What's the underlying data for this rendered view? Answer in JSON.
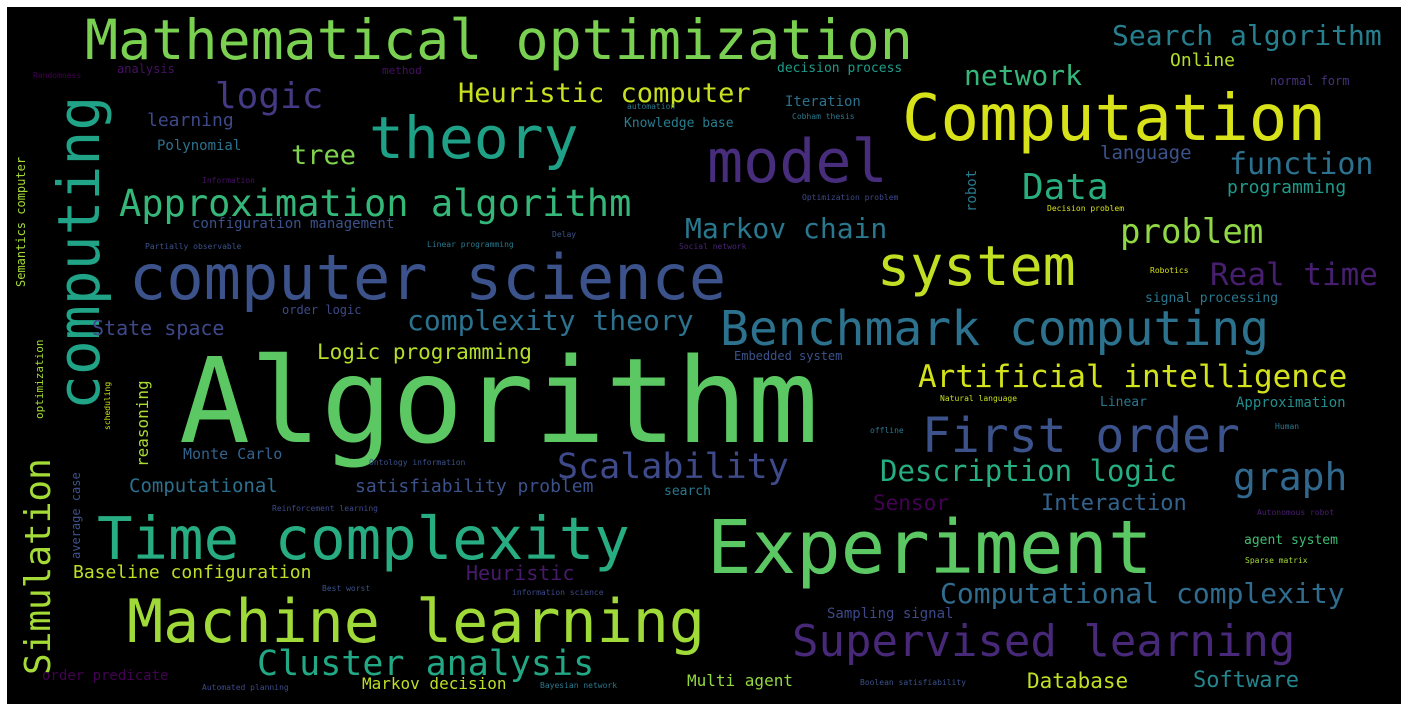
{
  "words": [
    {
      "text": "Algorithm",
      "color": "#5cc863"
    },
    {
      "text": "Experiment",
      "color": "#5cc863"
    },
    {
      "text": "computer science",
      "color": "#3b528b"
    },
    {
      "text": "Computation",
      "color": "#d8e219"
    },
    {
      "text": "Mathematical optimization",
      "color": "#7ad151"
    },
    {
      "text": "Time complexity",
      "color": "#27ad81"
    },
    {
      "text": "Machine learning",
      "color": "#a0da39"
    },
    {
      "text": "computing",
      "color": "#20a386"
    },
    {
      "text": "Benchmark computing",
      "color": "#2c728e"
    },
    {
      "text": "system",
      "color": "#c2df23"
    },
    {
      "text": "model",
      "color": "#472d7b"
    },
    {
      "text": "theory",
      "color": "#1fa187"
    },
    {
      "text": "First order",
      "color": "#3b528b"
    },
    {
      "text": "Supervised learning",
      "color": "#482878"
    },
    {
      "text": "Approximation algorithm",
      "color": "#35b779"
    },
    {
      "text": "Simulation",
      "color": "#a5db36"
    },
    {
      "text": "Cluster analysis",
      "color": "#22a884"
    },
    {
      "text": "Scalability",
      "color": "#3e4a89"
    },
    {
      "text": "logic",
      "color": "#443a83"
    },
    {
      "text": "graph",
      "color": "#31688e"
    },
    {
      "text": "Artificial intelligence",
      "color": "#d2e21b"
    },
    {
      "text": "Description logic",
      "color": "#26ad81"
    },
    {
      "text": "Computational complexity",
      "color": "#2f6c8e"
    },
    {
      "text": "problem",
      "color": "#8fd744"
    },
    {
      "text": "Heuristic computer",
      "color": "#c8e020"
    },
    {
      "text": "Data",
      "color": "#29af7f"
    },
    {
      "text": "Markov chain",
      "color": "#2a788e"
    },
    {
      "text": "complexity theory",
      "color": "#2c718e"
    },
    {
      "text": "Real time",
      "color": "#481f70"
    },
    {
      "text": "function",
      "color": "#2c718e"
    },
    {
      "text": "Search algorithm",
      "color": "#277f8e"
    },
    {
      "text": "network",
      "color": "#35b779"
    },
    {
      "text": "tree",
      "color": "#7fd34e"
    },
    {
      "text": "Logic programming",
      "color": "#b5de2b"
    },
    {
      "text": "Interaction",
      "color": "#33638d"
    },
    {
      "text": "Sensor",
      "color": "#440154"
    },
    {
      "text": "satisfiability problem",
      "color": "#3b528b"
    },
    {
      "text": "Computational",
      "color": "#2d708e"
    },
    {
      "text": "State space",
      "color": "#3f4889"
    },
    {
      "text": "Monte Carlo",
      "color": "#33638d"
    },
    {
      "text": "Baseline configuration",
      "color": "#bddf26"
    },
    {
      "text": "Heuristic",
      "color": "#481a6c"
    },
    {
      "text": "Database",
      "color": "#c0df25"
    },
    {
      "text": "Software",
      "color": "#25858e"
    },
    {
      "text": "Markov decision",
      "color": "#bddf26"
    },
    {
      "text": "Multi agent",
      "color": "#93d741"
    },
    {
      "text": "language",
      "color": "#3b528b"
    },
    {
      "text": "programming",
      "color": "#1f9a8a"
    },
    {
      "text": "Online",
      "color": "#b5de2b"
    },
    {
      "text": "learning",
      "color": "#3e4989"
    },
    {
      "text": "Polynomial",
      "color": "#2c728e"
    },
    {
      "text": "configuration management",
      "color": "#3b528b"
    },
    {
      "text": "Iteration",
      "color": "#2c718e"
    },
    {
      "text": "Knowledge base",
      "color": "#287d8e"
    },
    {
      "text": "decision process",
      "color": "#1e9c89"
    },
    {
      "text": "signal processing",
      "color": "#2a788e"
    },
    {
      "text": "Embedded system",
      "color": "#3b528b"
    },
    {
      "text": "Linear",
      "color": "#2a768e"
    },
    {
      "text": "Approximation",
      "color": "#228d8d"
    },
    {
      "text": "agent system",
      "color": "#3fbc73"
    },
    {
      "text": "Sampling signal",
      "color": "#3e4989"
    },
    {
      "text": "order predicate",
      "color": "#440154"
    },
    {
      "text": "normal form",
      "color": "#46327e"
    },
    {
      "text": "analysis",
      "color": "#471164"
    },
    {
      "text": "method",
      "color": "#471164"
    },
    {
      "text": "order logic",
      "color": "#3e4989"
    },
    {
      "text": "search",
      "color": "#2a788e"
    },
    {
      "text": "robot",
      "color": "#2a788e"
    },
    {
      "text": "reasoning",
      "color": "#aadc32"
    },
    {
      "text": "Semantics computer",
      "color": "#a5db36"
    },
    {
      "text": "optimization",
      "color": "#a2da37"
    },
    {
      "text": "average case",
      "color": "#3b528b"
    },
    {
      "text": "scheduling",
      "color": "#cae11f"
    },
    {
      "text": "Randomness",
      "color": "#440154"
    },
    {
      "text": "Information",
      "color": "#471164"
    },
    {
      "text": "Partially observable",
      "color": "#3b528b"
    },
    {
      "text": "Linear programming",
      "color": "#2a788e"
    },
    {
      "text": "Social network",
      "color": "#482475"
    },
    {
      "text": "Delay",
      "color": "#3b528b"
    },
    {
      "text": "Optimization problem",
      "color": "#3e4989"
    },
    {
      "text": "Decision problem",
      "color": "#d8e219"
    },
    {
      "text": "Robotics",
      "color": "#d8e219"
    },
    {
      "text": "Natural language",
      "color": "#c8e020"
    },
    {
      "text": "Human",
      "color": "#2a788e"
    },
    {
      "text": "Ontology information",
      "color": "#3b528b"
    },
    {
      "text": "offline",
      "color": "#2a788e"
    },
    {
      "text": "Reinforcement learning",
      "color": "#3e4989"
    },
    {
      "text": "Autonomous robot",
      "color": "#481f70"
    },
    {
      "text": "Sparse matrix",
      "color": "#a5db36"
    },
    {
      "text": "Best worst",
      "color": "#3b528b"
    },
    {
      "text": "information science",
      "color": "#3e4989"
    },
    {
      "text": "Automated planning",
      "color": "#3e4989"
    },
    {
      "text": "Bayesian network",
      "color": "#2a788e"
    },
    {
      "text": "Boolean satisfiability",
      "color": "#3b528b"
    },
    {
      "text": "Cobham thesis",
      "color": "#2a788e"
    },
    {
      "text": "automation",
      "color": "#2a788e"
    }
  ]
}
